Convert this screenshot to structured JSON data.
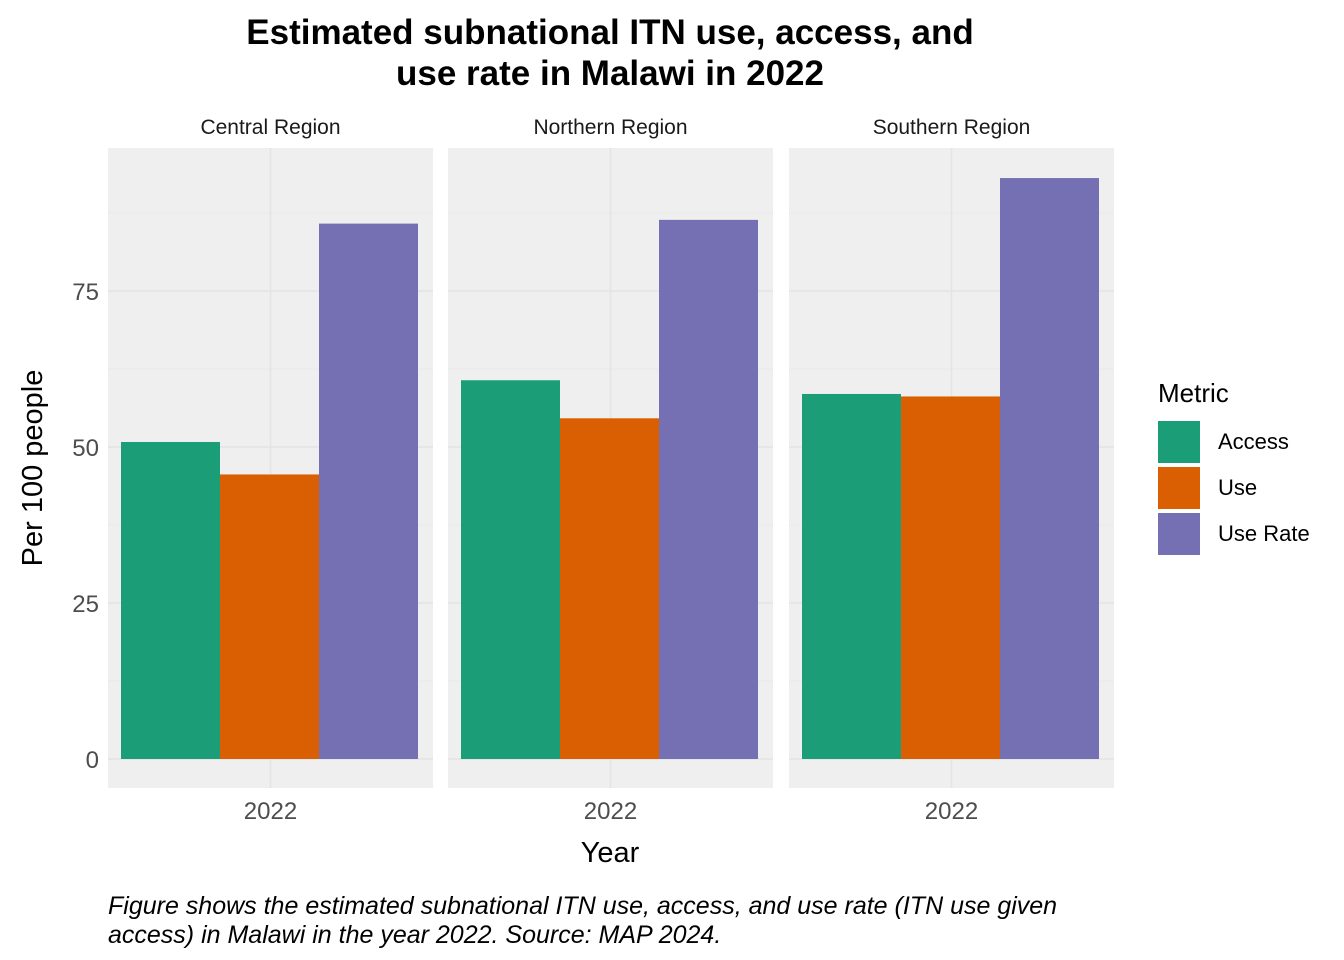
{
  "chart_data": {
    "type": "bar",
    "title_lines": [
      "Estimated subnational ITN use, access, and",
      "use rate in Malawi in 2022"
    ],
    "xlabel": "Year",
    "ylabel": "Per 100 people",
    "ylim": [
      0,
      100
    ],
    "yticks": [
      0,
      25,
      50,
      75
    ],
    "grid": true,
    "legend": {
      "title": "Metric",
      "placement": "right"
    },
    "categories": [
      "2022"
    ],
    "facets": [
      {
        "name": "Central Region",
        "series": [
          {
            "name": "Access",
            "values": [
              50.8
            ]
          },
          {
            "name": "Use",
            "values": [
              45.6
            ]
          },
          {
            "name": "Use Rate",
            "values": [
              85.8
            ]
          }
        ]
      },
      {
        "name": "Northern Region",
        "series": [
          {
            "name": "Access",
            "values": [
              60.7
            ]
          },
          {
            "name": "Use",
            "values": [
              54.6
            ]
          },
          {
            "name": "Use Rate",
            "values": [
              86.4
            ]
          }
        ]
      },
      {
        "name": "Southern Region",
        "series": [
          {
            "name": "Access",
            "values": [
              58.5
            ]
          },
          {
            "name": "Use",
            "values": [
              58.1
            ]
          },
          {
            "name": "Use Rate",
            "values": [
              93.1
            ]
          }
        ]
      }
    ],
    "colors": {
      "Access": "#1b9e77",
      "Use": "#d95f02",
      "Use Rate": "#7570b3"
    },
    "caption_lines": [
      "Figure shows the estimated subnational ITN use, access, and use rate (ITN use given",
      "access) in Malawi in the year 2022. Source: MAP 2024."
    ]
  }
}
